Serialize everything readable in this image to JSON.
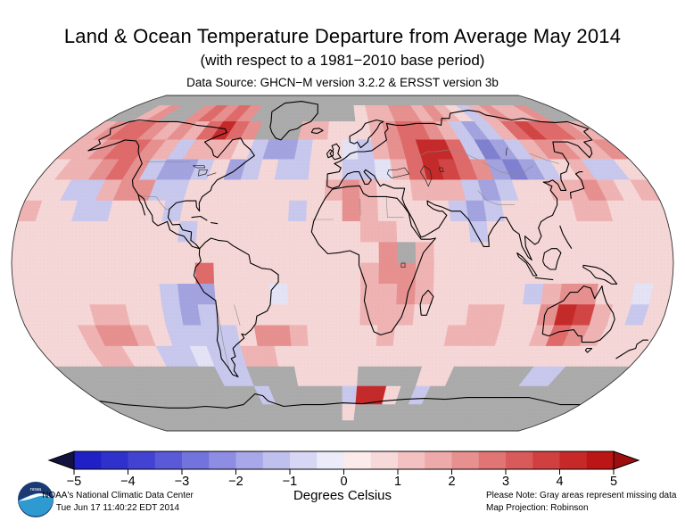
{
  "title": "Land & Ocean Temperature Departure from Average May 2014",
  "subtitle": "(with respect to a 1981−2010 base period)",
  "data_source": "Data Source: GHCN−M version 3.2.2 & ERSST version 3b",
  "footer": {
    "org_line1": "NOAA's National Climatic Data Center",
    "org_line2": "Tue Jun 17 11:40:22 EDT 2014",
    "note_line1": "Please Note: Gray areas represent missing data",
    "note_line2": "Map Projection: Robinson",
    "logo_name": "noaa-logo"
  },
  "colorbar": {
    "label": "Degrees Celsius",
    "ticks": [
      -5,
      -4,
      -3,
      -2,
      -1,
      0,
      1,
      2,
      3,
      4,
      5
    ],
    "segment_colors": [
      "#2020c6",
      "#3030cd",
      "#4343d3",
      "#5a5ad8",
      "#7373dd",
      "#8d8de3",
      "#a7a7e9",
      "#c0c0ef",
      "#d7d7f5",
      "#ebebfa",
      "#fbebeb",
      "#f8d9d9",
      "#f3c1c1",
      "#eeaaaa",
      "#e89090",
      "#e17575",
      "#d95a5a",
      "#d14040",
      "#c72929",
      "#bb1515"
    ],
    "left_arrow_color": "#12123e",
    "right_arrow_color": "#9e0e0e",
    "missing_color": "#ababab"
  },
  "chart_data": {
    "type": "heatmap",
    "title": "Land & Ocean Temperature Departure from Average May 2014",
    "units": "Degrees Celsius anomaly vs 1981−2010",
    "projection": "Robinson",
    "anomaly_range": [
      -5,
      5
    ],
    "grid_deg": 10,
    "lat_start": 90,
    "lon_start": -180,
    "palette": {
      "1": "#f6d7d7",
      "2": "#efb3b3",
      "3": "#e79090",
      "4": "#df6a6a",
      "5": "#d24545",
      "6": "#c52a2a",
      "a": "#e3e3f5",
      "b": "#c8c8ee",
      "c": "#a3a3e0",
      "d": "#8080d0",
      "G": "#ababab"
    },
    "palette_meaning": {
      "1": "+0 to +0.5 C",
      "2": "+0.5 to +1 C",
      "3": "+1 to +1.5 C",
      "4": "+1.5 to +2.5 C",
      "5": "+2.5 to +3.5 C",
      "6": "+3.5 to +5 C",
      "a": "0 to -0.5 C",
      "b": "-0.5 to -1 C",
      "c": "-1 to -2 C",
      "d": "-2 to -3 C",
      "G": "missing data"
    },
    "rows": [
      "GGGGGGGGGGGGGGGGGGGGGGGGGGGGGGGGGGGG",
      "GG23GG34343GGGGGGGG122332321b23223GG",
      "234432324643GGG22111234432bcb2454432",
      "2234432b2221bccb11ab234664bdcb233223",
      "122343bccb1cb1bb11bba246543cdcb12bb1",
      "11bb233bb1111111123211222bcb11223212",
      "211bb111b111111b11321111bcb111122111",
      "111111111b111111111221111b1111111111",
      "111111111111111111113G21111111111111",
      "111111111141111111123321111111111111",
      "11111111bcc111a1111223211111b23311a1",
      "11112211bcb11111111222111221136521b1",
      "11123321bbbb133211112111222112432111",
      "1112211bbabb221111111111111111111111",
      "GGGGGGGGGGbbGGG1111GGGG11GGGGGbbGGGG",
      "GGGGGGGGGGGGbGGGGGb661GbGGGGGGGGGGGG",
      "GGGGGGGGGGGGGGGGGG1GGGGGGGGGGGGGGGGG",
      "GGGGGGGGGGGGGGGGGGGGGGGGGGGGGGGGGGGG"
    ]
  }
}
